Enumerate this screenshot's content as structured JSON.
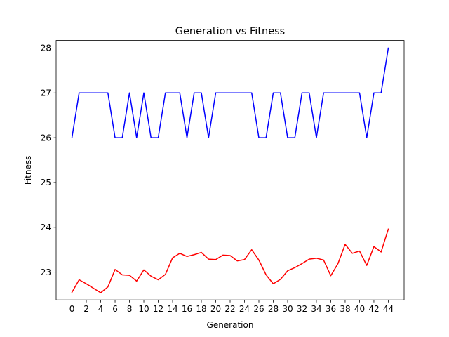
{
  "chart_data": {
    "type": "line",
    "title": "Generation vs Fitness",
    "xlabel": "Generation",
    "ylabel": "Fitness",
    "xlim": [
      -2.2,
      46.2
    ],
    "ylim": [
      22.38,
      28.17
    ],
    "xticks": [
      0,
      2,
      4,
      6,
      8,
      10,
      12,
      14,
      16,
      18,
      20,
      22,
      24,
      26,
      28,
      30,
      32,
      34,
      36,
      38,
      40,
      42,
      44
    ],
    "yticks": [
      23,
      24,
      25,
      26,
      27,
      28
    ],
    "grid": false,
    "x": [
      0,
      1,
      2,
      3,
      4,
      5,
      6,
      7,
      8,
      9,
      10,
      11,
      12,
      13,
      14,
      15,
      16,
      17,
      18,
      19,
      20,
      21,
      22,
      23,
      24,
      25,
      26,
      27,
      28,
      29,
      30,
      31,
      32,
      33,
      34,
      35,
      36,
      37,
      38,
      39,
      40,
      41,
      42,
      43,
      44
    ],
    "series": [
      {
        "color": "#0000ff",
        "values": [
          26,
          27,
          27,
          27,
          27,
          27,
          26,
          26,
          27,
          26,
          27,
          26,
          26,
          27,
          27,
          27,
          26,
          27,
          27,
          26,
          27,
          27,
          27,
          27,
          27,
          27,
          26,
          26,
          27,
          27,
          26,
          26,
          27,
          27,
          26,
          27,
          27,
          27,
          27,
          27,
          27,
          26,
          27,
          27,
          28
        ]
      },
      {
        "color": "#ff0000",
        "values": [
          22.55,
          22.83,
          22.74,
          22.64,
          22.54,
          22.67,
          23.06,
          22.94,
          22.93,
          22.8,
          23.05,
          22.91,
          22.83,
          22.95,
          23.32,
          23.42,
          23.35,
          23.39,
          23.44,
          23.29,
          23.28,
          23.38,
          23.37,
          23.25,
          23.28,
          23.5,
          23.27,
          22.94,
          22.74,
          22.84,
          23.03,
          23.1,
          23.19,
          23.29,
          23.31,
          23.27,
          22.92,
          23.19,
          23.62,
          23.42,
          23.47,
          23.15,
          23.57,
          23.45,
          23.96
        ]
      }
    ]
  }
}
